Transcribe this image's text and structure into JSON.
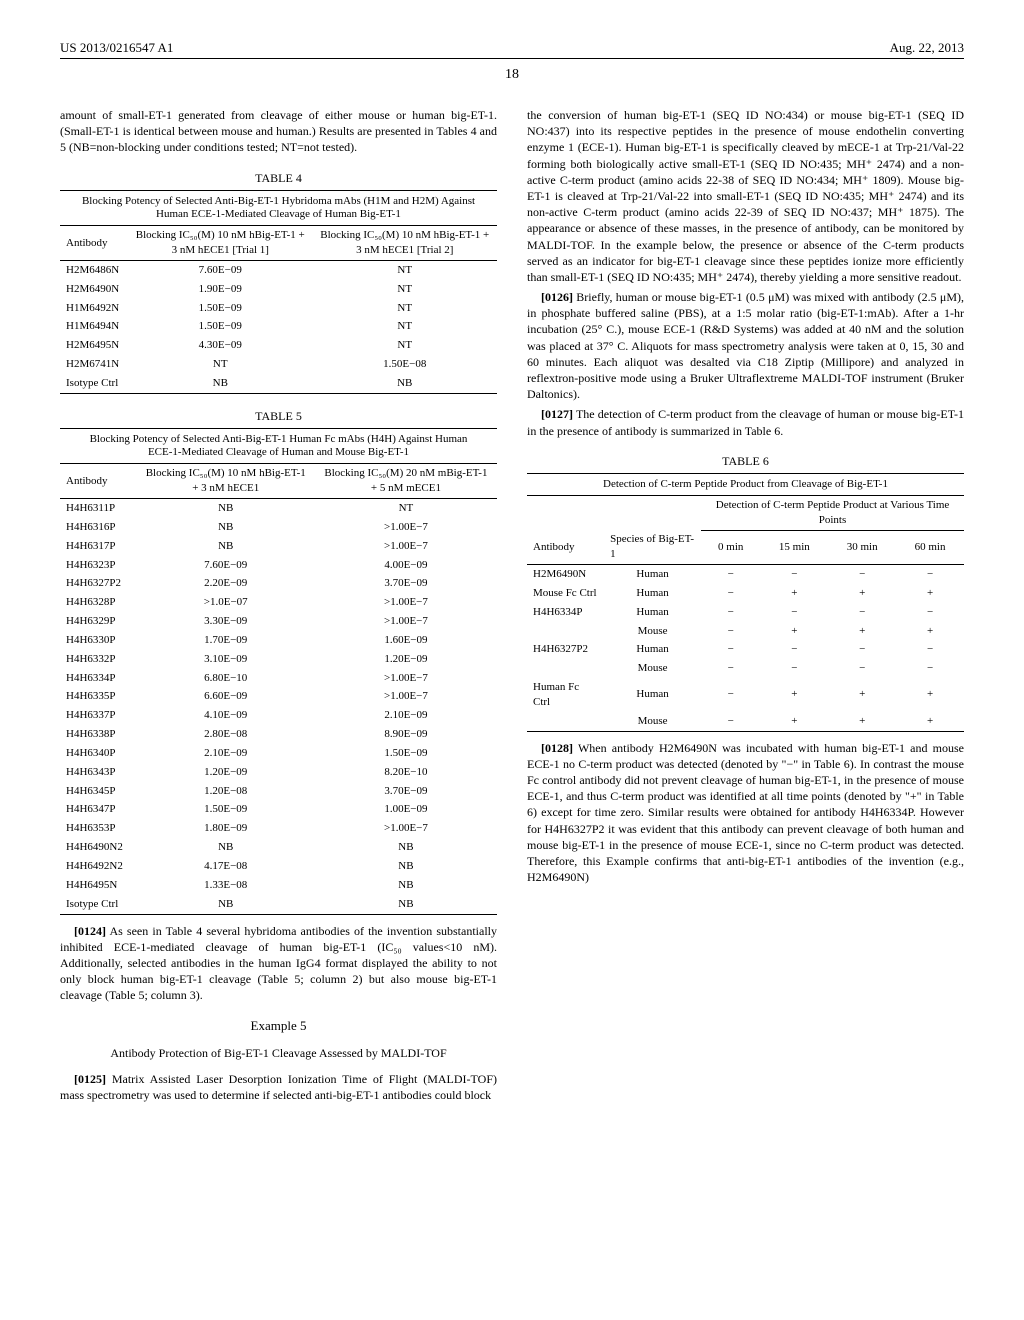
{
  "header": {
    "doc_id": "US 2013/0216547 A1",
    "date": "Aug. 22, 2013"
  },
  "page_number": "18",
  "left": {
    "intro": "amount of small-ET-1 generated from cleavage of either mouse or human big-ET-1. (Small-ET-1 is identical between mouse and human.) Results are presented in Tables 4 and 5 (NB=non-blocking under conditions tested; NT=not tested).",
    "table4": {
      "label": "TABLE 4",
      "caption": "Blocking Potency of Selected Anti-Big-ET-1 Hybridoma mAbs (H1M and H2M) Against Human ECE-1-Mediated Cleavage of Human Big-ET-1",
      "col1": "Antibody",
      "col2": "Blocking IC₅₀(M) 10 nM hBig-ET-1 + 3 nM hECE1 [Trial 1]",
      "col3": "Blocking IC₅₀(M) 10 nM hBig-ET-1 + 3 nM hECE1 [Trial 2]",
      "rows": [
        {
          "a": "H2M6486N",
          "b": "7.60E−09",
          "c": "NT"
        },
        {
          "a": "H2M6490N",
          "b": "1.90E−09",
          "c": "NT"
        },
        {
          "a": "H1M6492N",
          "b": "1.50E−09",
          "c": "NT"
        },
        {
          "a": "H1M6494N",
          "b": "1.50E−09",
          "c": "NT"
        },
        {
          "a": "H2M6495N",
          "b": "4.30E−09",
          "c": "NT"
        },
        {
          "a": "H2M6741N",
          "b": "NT",
          "c": "1.50E−08"
        },
        {
          "a": "Isotype Ctrl",
          "b": "NB",
          "c": "NB"
        }
      ]
    },
    "table5": {
      "label": "TABLE 5",
      "caption": "Blocking Potency of Selected Anti-Big-ET-1 Human Fc mAbs (H4H) Against Human ECE-1-Mediated Cleavage of Human and Mouse Big-ET-1",
      "col1": "Antibody",
      "col2": "Blocking IC₅₀(M) 10 nM hBig-ET-1 + 3 nM hECE1",
      "col3": "Blocking IC₅₀(M) 20 nM mBig-ET-1 + 5 nM mECE1",
      "rows": [
        {
          "a": "H4H6311P",
          "b": "NB",
          "c": "NT"
        },
        {
          "a": "H4H6316P",
          "b": "NB",
          "c": ">1.00E−7"
        },
        {
          "a": "H4H6317P",
          "b": "NB",
          "c": ">1.00E−7"
        },
        {
          "a": "H4H6323P",
          "b": "7.60E−09",
          "c": "4.00E−09"
        },
        {
          "a": "H4H6327P2",
          "b": "2.20E−09",
          "c": "3.70E−09"
        },
        {
          "a": "H4H6328P",
          "b": ">1.0E−07",
          "c": ">1.00E−7"
        },
        {
          "a": "H4H6329P",
          "b": "3.30E−09",
          "c": ">1.00E−7"
        },
        {
          "a": "H4H6330P",
          "b": "1.70E−09",
          "c": "1.60E−09"
        },
        {
          "a": "H4H6332P",
          "b": "3.10E−09",
          "c": "1.20E−09"
        },
        {
          "a": "H4H6334P",
          "b": "6.80E−10",
          "c": ">1.00E−7"
        },
        {
          "a": "H4H6335P",
          "b": "6.60E−09",
          "c": ">1.00E−7"
        },
        {
          "a": "H4H6337P",
          "b": "4.10E−09",
          "c": "2.10E−09"
        },
        {
          "a": "H4H6338P",
          "b": "2.80E−08",
          "c": "8.90E−09"
        },
        {
          "a": "H4H6340P",
          "b": "2.10E−09",
          "c": "1.50E−09"
        },
        {
          "a": "H4H6343P",
          "b": "1.20E−09",
          "c": "8.20E−10"
        },
        {
          "a": "H4H6345P",
          "b": "1.20E−08",
          "c": "3.70E−09"
        },
        {
          "a": "H4H6347P",
          "b": "1.50E−09",
          "c": "1.00E−09"
        },
        {
          "a": "H4H6353P",
          "b": "1.80E−09",
          "c": ">1.00E−7"
        },
        {
          "a": "H4H6490N2",
          "b": "NB",
          "c": "NB"
        },
        {
          "a": "H4H6492N2",
          "b": "4.17E−08",
          "c": "NB"
        },
        {
          "a": "H4H6495N",
          "b": "1.33E−08",
          "c": "NB"
        },
        {
          "a": "Isotype Ctrl",
          "b": "NB",
          "c": "NB"
        }
      ]
    },
    "p0124_num": "[0124]",
    "p0124": "As seen in Table 4 several hybridoma antibodies of the invention substantially inhibited ECE-1-mediated cleavage of human big-ET-1 (IC₅₀ values<10 nM). Additionally, selected antibodies in the human IgG4 format displayed the ability to not only block human big-ET-1 cleavage (Table 5; column 2) but also mouse big-ET-1 cleavage (Table 5; column 3).",
    "example_label": "Example 5",
    "example_title": "Antibody Protection of Big-ET-1 Cleavage Assessed by MALDI-TOF",
    "p0125_num": "[0125]",
    "p0125": "Matrix Assisted Laser Desorption Ionization Time of Flight (MALDI-TOF) mass spectrometry was used to determine if selected anti-big-ET-1 antibodies could block"
  },
  "right": {
    "cont": "the conversion of human big-ET-1 (SEQ ID NO:434) or mouse big-ET-1 (SEQ ID NO:437) into its respective peptides in the presence of mouse endothelin converting enzyme 1 (ECE-1). Human big-ET-1 is specifically cleaved by mECE-1 at Trp-21/Val-22 forming both biologically active small-ET-1 (SEQ ID NO:435; MH⁺ 2474) and a non-active C-term product (amino acids 22-38 of SEQ ID NO:434; MH⁺ 1809). Mouse big-ET-1 is cleaved at Trp-21/Val-22 into small-ET-1 (SEQ ID NO:435; MH⁺ 2474) and its non-active C-term product (amino acids 22-39 of SEQ ID NO:437; MH⁺ 1875). The appearance or absence of these masses, in the presence of antibody, can be monitored by MALDI-TOF. In the example below, the presence or absence of the C-term products served as an indicator for big-ET-1 cleavage since these peptides ionize more efficiently than small-ET-1 (SEQ ID NO:435; MH⁺ 2474), thereby yielding a more sensitive readout.",
    "p0126_num": "[0126]",
    "p0126": "Briefly, human or mouse big-ET-1 (0.5 μM) was mixed with antibody (2.5 μM), in phosphate buffered saline (PBS), at a 1:5 molar ratio (big-ET-1:mAb). After a 1-hr incubation (25° C.), mouse ECE-1 (R&D Systems) was added at 40 nM and the solution was placed at 37° C. Aliquots for mass spectrometry analysis were taken at 0, 15, 30 and 60 minutes. Each aliquot was desalted via C18 Ziptip (Millipore) and analyzed in reflextron-positive mode using a Bruker Ultraflextreme MALDI-TOF instrument (Bruker Daltonics).",
    "p0127_num": "[0127]",
    "p0127": "The detection of C-term product from the cleavage of human or mouse big-ET-1 in the presence of antibody is summarized in Table 6.",
    "table6": {
      "label": "TABLE 6",
      "caption": "Detection of C-term Peptide Product from Cleavage of Big-ET-1",
      "subhead": "Detection of C-term Peptide Product at Various Time Points",
      "h1": "Antibody",
      "h2": "Species of Big-ET-1",
      "h3": "0 min",
      "h4": "15 min",
      "h5": "30 min",
      "h6": "60 min",
      "rows": [
        {
          "a": "H2M6490N",
          "b": "Human",
          "c": "−",
          "d": "−",
          "e": "−",
          "f": "−"
        },
        {
          "a": "Mouse Fc Ctrl",
          "b": "Human",
          "c": "−",
          "d": "+",
          "e": "+",
          "f": "+"
        },
        {
          "a": "H4H6334P",
          "b": "Human",
          "c": "−",
          "d": "−",
          "e": "−",
          "f": "−"
        },
        {
          "a": "",
          "b": "Mouse",
          "c": "−",
          "d": "+",
          "e": "+",
          "f": "+"
        },
        {
          "a": "H4H6327P2",
          "b": "Human",
          "c": "−",
          "d": "−",
          "e": "−",
          "f": "−"
        },
        {
          "a": "",
          "b": "Mouse",
          "c": "−",
          "d": "−",
          "e": "−",
          "f": "−"
        },
        {
          "a": "Human Fc Ctrl",
          "b": "Human",
          "c": "−",
          "d": "+",
          "e": "+",
          "f": "+"
        },
        {
          "a": "",
          "b": "Mouse",
          "c": "−",
          "d": "+",
          "e": "+",
          "f": "+"
        }
      ]
    },
    "p0128_num": "[0128]",
    "p0128": "When antibody H2M6490N was incubated with human big-ET-1 and mouse ECE-1 no C-term product was detected (denoted by \"−\" in Table 6). In contrast the mouse Fc control antibody did not prevent cleavage of human big-ET-1, in the presence of mouse ECE-1, and thus C-term product was identified at all time points (denoted by \"+\" in Table 6) except for time zero. Similar results were obtained for antibody H4H6334P. However for H4H6327P2 it was evident that this antibody can prevent cleavage of both human and mouse big-ET-1 in the presence of mouse ECE-1, since no C-term product was detected. Therefore, this Example confirms that anti-big-ET-1 antibodies of the invention (e.g., H2M6490N)"
  }
}
